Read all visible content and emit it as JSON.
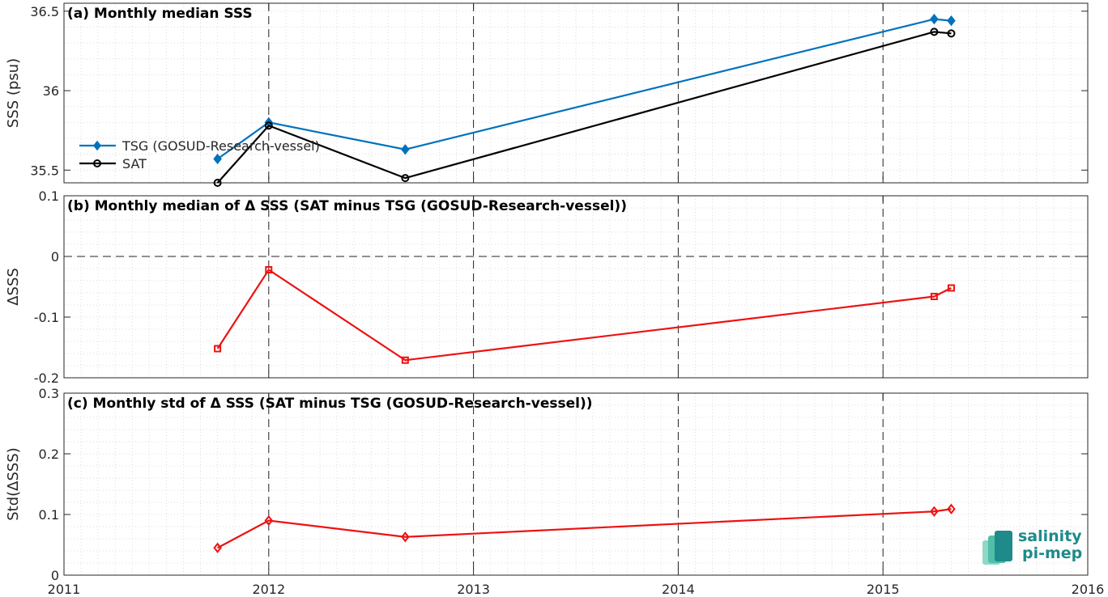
{
  "colors": {
    "tsg": "#0072BD",
    "sat": "#000000",
    "delta": "#EE1111",
    "logo": "#1f8a8a"
  },
  "logo": {
    "line1": "salinity",
    "line2": "pi-mep"
  },
  "chart_data": [
    {
      "type": "line",
      "title": "(a) Monthly median SSS",
      "ylabel": "SSS (psu)",
      "xlim": [
        2011,
        2016
      ],
      "ylim": [
        35.42,
        36.55
      ],
      "x_ticks": [
        "2011",
        "2012",
        "2013",
        "2014",
        "2015",
        "2016"
      ],
      "y_ticks": [
        "35.5",
        "36",
        "36.5"
      ],
      "y_tick_values": [
        35.5,
        36,
        36.5
      ],
      "grid": true,
      "legend_position": "middle-left",
      "series": [
        {
          "name": "TSG (GOSUD-Research-vessel)",
          "marker": "diamond",
          "color": "#0072BD",
          "x": [
            "2011-10",
            "2012-01",
            "2012-09",
            "2015-04",
            "2015-05"
          ],
          "y": [
            35.57,
            35.8,
            35.63,
            36.45,
            36.44
          ]
        },
        {
          "name": "SAT",
          "marker": "circle",
          "color": "#000000",
          "x": [
            "2011-10",
            "2012-01",
            "2012-09",
            "2015-04",
            "2015-05"
          ],
          "y": [
            35.42,
            35.78,
            35.45,
            36.37,
            36.36
          ]
        }
      ]
    },
    {
      "type": "line",
      "title": "(b) Monthly median of Δ SSS (SAT minus TSG (GOSUD-Research-vessel))",
      "ylabel": "ΔSSS",
      "xlim": [
        2011,
        2016
      ],
      "ylim": [
        -0.2,
        0.1
      ],
      "x_ticks": [
        "2011",
        "2012",
        "2013",
        "2014",
        "2015",
        "2016"
      ],
      "y_ticks": [
        "-0.2",
        "-0.1",
        "0",
        "0.1"
      ],
      "y_tick_values": [
        -0.2,
        -0.1,
        0,
        0.1
      ],
      "grid": true,
      "zero_line": true,
      "series": [
        {
          "marker": "square",
          "color": "#EE1111",
          "x": [
            "2011-10",
            "2012-01",
            "2012-09",
            "2015-04",
            "2015-05"
          ],
          "y": [
            -0.152,
            -0.022,
            -0.171,
            -0.066,
            -0.052
          ]
        }
      ]
    },
    {
      "type": "line",
      "title": "(c) Monthly std of Δ SSS (SAT minus TSG (GOSUD-Research-vessel))",
      "ylabel": "Std(ΔSSS)",
      "xlim": [
        2011,
        2016
      ],
      "ylim": [
        0,
        0.3
      ],
      "x_ticks": [
        "2011",
        "2012",
        "2013",
        "2014",
        "2015",
        "2016"
      ],
      "y_ticks": [
        "0",
        "0.1",
        "0.2",
        "0.3"
      ],
      "y_tick_values": [
        0,
        0.1,
        0.2,
        0.3
      ],
      "grid": true,
      "series": [
        {
          "marker": "diamond",
          "color": "#EE1111",
          "x": [
            "2011-10",
            "2012-01",
            "2012-09",
            "2015-04",
            "2015-05"
          ],
          "y": [
            0.045,
            0.09,
            0.063,
            0.105,
            0.109
          ]
        }
      ]
    }
  ]
}
